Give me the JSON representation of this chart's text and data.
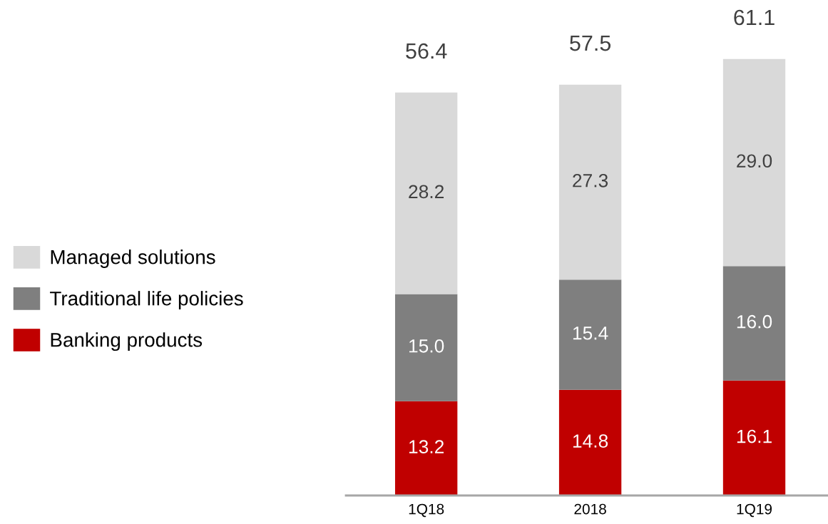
{
  "chart_data": {
    "type": "bar",
    "stacked": true,
    "categories": [
      "1Q18",
      "2018",
      "1Q19"
    ],
    "series": [
      {
        "name": "Banking products",
        "color": "#c00000",
        "values": [
          13.2,
          14.8,
          16.1
        ],
        "value_labels": [
          "13.2",
          "14.8",
          "16.1"
        ]
      },
      {
        "name": "Traditional life policies",
        "color": "#7f7f7f",
        "values": [
          15.0,
          15.4,
          16.0
        ],
        "value_labels": [
          "15.0",
          "15.4",
          "16.0"
        ]
      },
      {
        "name": "Managed solutions",
        "color": "#d9d9d9",
        "values": [
          28.2,
          27.3,
          29.0
        ],
        "value_labels": [
          "28.2",
          "27.3",
          "29.0"
        ]
      }
    ],
    "totals": [
      "56.4",
      "57.5",
      "61.1"
    ],
    "legend": "left",
    "grid": false,
    "tick_labels": "x"
  }
}
